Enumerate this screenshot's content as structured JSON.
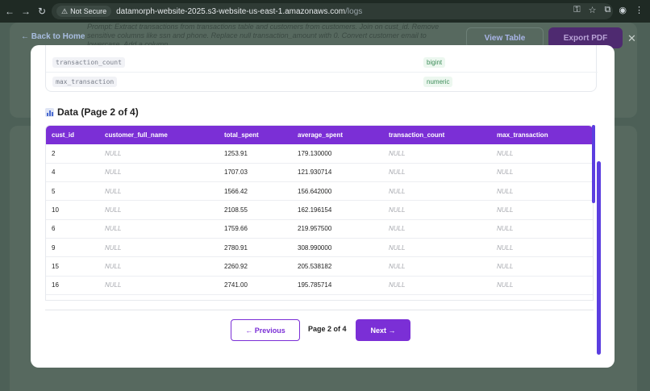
{
  "browser": {
    "security_label": "Not Secure",
    "url_host": "datamorph-website-2025.s3-website-us-east-1.amazonaws.com",
    "url_path": "/logs"
  },
  "background": {
    "back_label": "← Back to Home",
    "prompt_text": "Prompt: Extract transactions from transactions table and customers from customers. Join on cust_id. Remove sensitive columns like ssn and phone. Replace null transaction_amount with 0. Convert customer email to lowercase. Add a column",
    "view_table_label": "View Table",
    "export_pdf_label": "Export PDF"
  },
  "schema": {
    "rows": [
      {
        "column": "transaction_count",
        "type": "bigint"
      },
      {
        "column": "max_transaction",
        "type": "numeric"
      }
    ]
  },
  "data_section": {
    "title": "Data (Page 2 of 4)"
  },
  "table": {
    "headers": [
      "cust_id",
      "customer_full_name",
      "total_spent",
      "average_spent",
      "transaction_count",
      "max_transaction"
    ],
    "rows": [
      [
        "2",
        "NULL",
        "1253.91",
        "179.130000",
        "NULL",
        "NULL"
      ],
      [
        "4",
        "NULL",
        "1707.03",
        "121.930714",
        "NULL",
        "NULL"
      ],
      [
        "5",
        "NULL",
        "1566.42",
        "156.642000",
        "NULL",
        "NULL"
      ],
      [
        "10",
        "NULL",
        "2108.55",
        "162.196154",
        "NULL",
        "NULL"
      ],
      [
        "6",
        "NULL",
        "1759.66",
        "219.957500",
        "NULL",
        "NULL"
      ],
      [
        "9",
        "NULL",
        "2780.91",
        "308.990000",
        "NULL",
        "NULL"
      ],
      [
        "15",
        "NULL",
        "2260.92",
        "205.538182",
        "NULL",
        "NULL"
      ],
      [
        "16",
        "NULL",
        "2741.00",
        "195.785714",
        "NULL",
        "NULL"
      ]
    ]
  },
  "pagination": {
    "prev_label": "← Previous",
    "page_info": "Page 2 of 4",
    "next_label": "Next →"
  },
  "colors": {
    "accent": "#7b2fd6",
    "scrollbar": "#5b3ee0"
  }
}
